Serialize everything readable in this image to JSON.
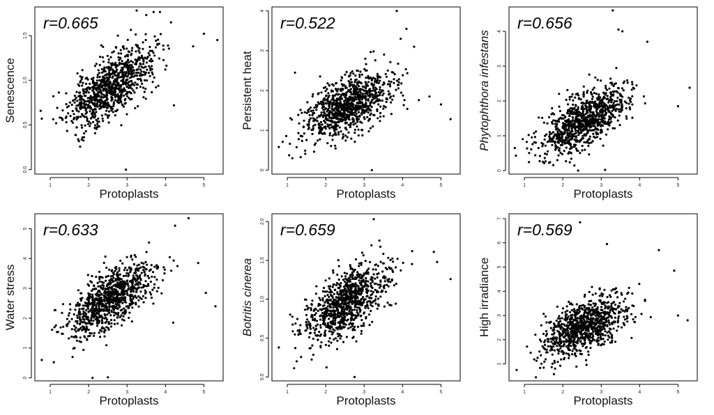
{
  "chart_data": [
    {
      "type": "scatter",
      "title": "",
      "xlabel": "Protoplasts",
      "ylabel": "Senescence",
      "ylabel_italic": false,
      "annotation": "r=0.665",
      "r": 0.665,
      "xlim": [
        0.6,
        5.5
      ],
      "ylim": [
        -0.05,
        1.82
      ],
      "xticks": [
        1,
        2,
        3,
        4,
        5
      ],
      "xtick_labels": [
        "1",
        "2",
        "3",
        "4",
        "5"
      ],
      "yticks": [
        0.0,
        0.5,
        1.0,
        1.5
      ],
      "ytick_labels": [
        "0.0",
        "0.5",
        "1.0",
        "1.5"
      ],
      "cloud": {
        "n": 950,
        "x_mean": 2.55,
        "x_sd": 0.55,
        "y_mean": 0.93,
        "y_sd": 0.22,
        "seed": 11
      },
      "points": [
        {
          "x": 2.97,
          "y": 0.0
        },
        {
          "x": 5.0,
          "y": 1.52
        },
        {
          "x": 5.35,
          "y": 1.45
        },
        {
          "x": 4.22,
          "y": 0.72
        },
        {
          "x": 3.25,
          "y": 1.78
        },
        {
          "x": 3.5,
          "y": 1.73
        },
        {
          "x": 0.78,
          "y": 0.57
        },
        {
          "x": 4.72,
          "y": 1.38
        }
      ],
      "grid": false
    },
    {
      "type": "scatter",
      "title": "",
      "xlabel": "Protoplasts",
      "ylabel": "Persistent heat",
      "ylabel_italic": false,
      "annotation": "r=0.522",
      "r": 0.522,
      "xlim": [
        0.6,
        5.5
      ],
      "ylim": [
        -0.1,
        4.1
      ],
      "xticks": [
        1,
        2,
        3,
        4,
        5
      ],
      "xtick_labels": [
        "1",
        "2",
        "3",
        "4",
        "5"
      ],
      "yticks": [
        0,
        1,
        2,
        3,
        4
      ],
      "ytick_labels": [
        "0",
        "1",
        "2",
        "3",
        "4"
      ],
      "cloud": {
        "n": 950,
        "x_mean": 2.55,
        "x_sd": 0.55,
        "y_mean": 1.6,
        "y_sd": 0.4,
        "seed": 23
      },
      "points": [
        {
          "x": 3.2,
          "y": 0.0
        },
        {
          "x": 3.85,
          "y": 4.0
        },
        {
          "x": 5.25,
          "y": 1.28
        },
        {
          "x": 5.0,
          "y": 1.65
        },
        {
          "x": 4.7,
          "y": 1.85
        },
        {
          "x": 0.78,
          "y": 0.58
        },
        {
          "x": 4.1,
          "y": 3.55
        },
        {
          "x": 3.95,
          "y": 3.3
        },
        {
          "x": 1.2,
          "y": 2.45
        },
        {
          "x": 4.3,
          "y": 3.1
        }
      ],
      "grid": false
    },
    {
      "type": "scatter",
      "title": "",
      "xlabel": "Protoplasts",
      "ylabel": "Phytophthora infestans",
      "ylabel_italic": true,
      "annotation": "r=0.656",
      "r": 0.656,
      "xlim": [
        0.6,
        5.5
      ],
      "ylim": [
        -0.1,
        4.7
      ],
      "xticks": [
        1,
        2,
        3,
        4,
        5
      ],
      "xtick_labels": [
        "1",
        "2",
        "3",
        "4",
        "5"
      ],
      "yticks": [
        0,
        1,
        2,
        3,
        4
      ],
      "ytick_labels": [
        "0",
        "1",
        "2",
        "3",
        "4"
      ],
      "cloud": {
        "n": 950,
        "x_mean": 2.55,
        "x_sd": 0.55,
        "y_mean": 1.45,
        "y_sd": 0.48,
        "seed": 37
      },
      "points": [
        {
          "x": 3.3,
          "y": 4.6
        },
        {
          "x": 3.45,
          "y": 4.05
        },
        {
          "x": 3.55,
          "y": 4.0
        },
        {
          "x": 5.0,
          "y": 1.85
        },
        {
          "x": 5.3,
          "y": 2.38
        },
        {
          "x": 2.4,
          "y": 0.0
        },
        {
          "x": 3.1,
          "y": 0.02
        },
        {
          "x": 0.78,
          "y": 0.43
        },
        {
          "x": 4.2,
          "y": 3.7
        }
      ],
      "grid": false
    },
    {
      "type": "scatter",
      "title": "",
      "xlabel": "Protoplasts",
      "ylabel": "Water stress",
      "ylabel_italic": false,
      "annotation": "r=0.633",
      "r": 0.633,
      "xlim": [
        0.6,
        5.5
      ],
      "ylim": [
        -0.1,
        5.5
      ],
      "xticks": [
        1,
        2,
        3,
        4,
        5
      ],
      "xtick_labels": [
        "1",
        "2",
        "3",
        "4",
        "5"
      ],
      "yticks": [
        0,
        1,
        2,
        3,
        4,
        5
      ],
      "ytick_labels": [
        "0",
        "1",
        "2",
        "3",
        "4",
        "5"
      ],
      "cloud": {
        "n": 950,
        "x_mean": 2.55,
        "x_sd": 0.55,
        "y_mean": 2.6,
        "y_sd": 0.6,
        "seed": 51
      },
      "points": [
        {
          "x": 2.1,
          "y": 0.0
        },
        {
          "x": 2.5,
          "y": 0.02
        },
        {
          "x": 4.6,
          "y": 5.35
        },
        {
          "x": 4.25,
          "y": 5.1
        },
        {
          "x": 5.3,
          "y": 2.4
        },
        {
          "x": 5.05,
          "y": 2.85
        },
        {
          "x": 4.85,
          "y": 3.85
        },
        {
          "x": 0.78,
          "y": 0.6
        },
        {
          "x": 4.2,
          "y": 1.85
        }
      ],
      "grid": false
    },
    {
      "type": "scatter",
      "title": "",
      "xlabel": "Protoplasts",
      "ylabel": "Botritis cinerea",
      "ylabel_italic": true,
      "annotation": "r=0.659",
      "r": 0.659,
      "xlim": [
        0.6,
        5.5
      ],
      "ylim": [
        -0.05,
        2.1
      ],
      "xticks": [
        1,
        2,
        3,
        4,
        5
      ],
      "xtick_labels": [
        "1",
        "2",
        "3",
        "4",
        "5"
      ],
      "yticks": [
        0.0,
        0.5,
        1.0,
        1.5,
        2.0
      ],
      "ytick_labels": [
        "0.0",
        "0.5",
        "1.0",
        "1.5",
        "2.0"
      ],
      "cloud": {
        "n": 950,
        "x_mean": 2.55,
        "x_sd": 0.55,
        "y_mean": 0.97,
        "y_sd": 0.25,
        "seed": 67
      },
      "points": [
        {
          "x": 2.75,
          "y": 0.0
        },
        {
          "x": 3.25,
          "y": 2.03
        },
        {
          "x": 5.25,
          "y": 1.26
        },
        {
          "x": 4.9,
          "y": 1.48
        },
        {
          "x": 0.78,
          "y": 0.38
        },
        {
          "x": 4.25,
          "y": 1.62
        }
      ],
      "grid": false
    },
    {
      "type": "scatter",
      "title": "",
      "xlabel": "Protoplasts",
      "ylabel": "High irradiance",
      "ylabel_italic": false,
      "annotation": "r=0.569",
      "r": 0.569,
      "xlim": [
        0.6,
        5.5
      ],
      "ylim": [
        0.3,
        7.2
      ],
      "xticks": [
        1,
        2,
        3,
        4,
        5
      ],
      "xtick_labels": [
        "1",
        "2",
        "3",
        "4",
        "5"
      ],
      "yticks": [
        1,
        2,
        3,
        4,
        5,
        6,
        7
      ],
      "ytick_labels": [
        "1",
        "2",
        "3",
        "4",
        "5",
        "6",
        "7"
      ],
      "cloud": {
        "n": 950,
        "x_mean": 2.55,
        "x_sd": 0.55,
        "y_mean": 2.55,
        "y_sd": 0.65,
        "seed": 83
      },
      "points": [
        {
          "x": 2.45,
          "y": 6.85
        },
        {
          "x": 3.15,
          "y": 5.95
        },
        {
          "x": 5.25,
          "y": 2.8
        },
        {
          "x": 5.0,
          "y": 3.0
        },
        {
          "x": 4.5,
          "y": 5.7
        },
        {
          "x": 0.8,
          "y": 0.75
        },
        {
          "x": 1.3,
          "y": 0.45
        },
        {
          "x": 4.9,
          "y": 4.85
        }
      ],
      "grid": false
    }
  ]
}
